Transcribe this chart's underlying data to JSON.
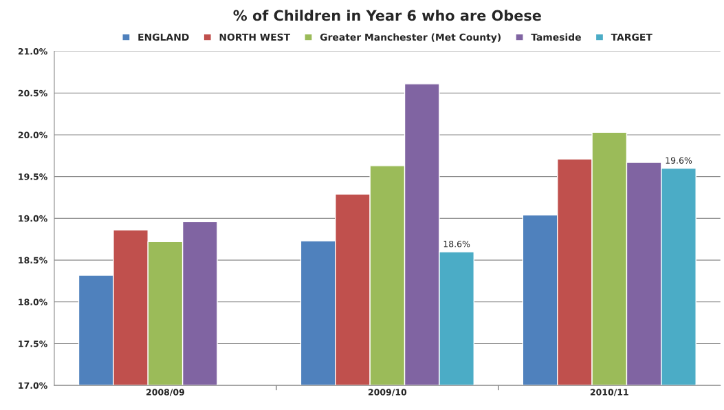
{
  "chart_data": {
    "type": "bar",
    "title": "% of Children in Year 6 who are Obese",
    "categories": [
      "2008/09",
      "2009/10",
      "2010/11"
    ],
    "series": [
      {
        "name": "ENGLAND",
        "color": "#4f81bd",
        "values": [
          18.32,
          18.73,
          19.04
        ]
      },
      {
        "name": "NORTH WEST",
        "color": "#c0504d",
        "values": [
          18.86,
          19.29,
          19.71
        ]
      },
      {
        "name": "Greater Manchester (Met County)",
        "color": "#9bbb59",
        "values": [
          18.72,
          19.63,
          20.03
        ]
      },
      {
        "name": "Tameside",
        "color": "#8064a2",
        "values": [
          18.96,
          20.61,
          19.67
        ]
      },
      {
        "name": "TARGET",
        "color": "#4bacc6",
        "values": [
          null,
          18.6,
          19.6
        ],
        "value_labels": [
          null,
          "18.6%",
          "19.6%"
        ]
      }
    ],
    "ylim": [
      17.0,
      21.0
    ],
    "yticks": [
      {
        "value": 17.0,
        "label": "17.0%"
      },
      {
        "value": 17.5,
        "label": "17.5%"
      },
      {
        "value": 18.0,
        "label": "18.0%"
      },
      {
        "value": 18.5,
        "label": "18.5%"
      },
      {
        "value": 19.0,
        "label": "19.0%"
      },
      {
        "value": 19.5,
        "label": "19.5%"
      },
      {
        "value": 20.0,
        "label": "20.0%"
      },
      {
        "value": 20.5,
        "label": "20.5%"
      },
      {
        "value": 21.0,
        "label": "21.0%"
      }
    ],
    "grid": "y",
    "legend": "top"
  }
}
